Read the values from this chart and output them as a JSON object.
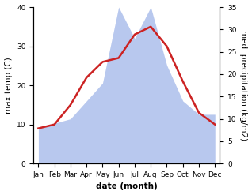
{
  "months": [
    "Jan",
    "Feb",
    "Mar",
    "Apr",
    "May",
    "Jun",
    "Jul",
    "Aug",
    "Sep",
    "Oct",
    "Nov",
    "Dec"
  ],
  "temperature": [
    9,
    10,
    15,
    22,
    26,
    27,
    33,
    35,
    30,
    21,
    13,
    10
  ],
  "precipitation": [
    8,
    9,
    10,
    14,
    18,
    35,
    28,
    35,
    22,
    14,
    11,
    11
  ],
  "temp_color": "#cc2222",
  "precip_color": "#b8c8ee",
  "temp_ylim": [
    0,
    40
  ],
  "precip_ylim": [
    0,
    35
  ],
  "temp_yticks": [
    0,
    10,
    20,
    30,
    40
  ],
  "precip_yticks": [
    0,
    5,
    10,
    15,
    20,
    25,
    30,
    35
  ],
  "xlabel": "date (month)",
  "ylabel_left": "max temp (C)",
  "ylabel_right": "med. precipitation (kg/m2)",
  "background_color": "#ffffff",
  "label_fontsize": 7.5,
  "tick_fontsize": 6.5
}
